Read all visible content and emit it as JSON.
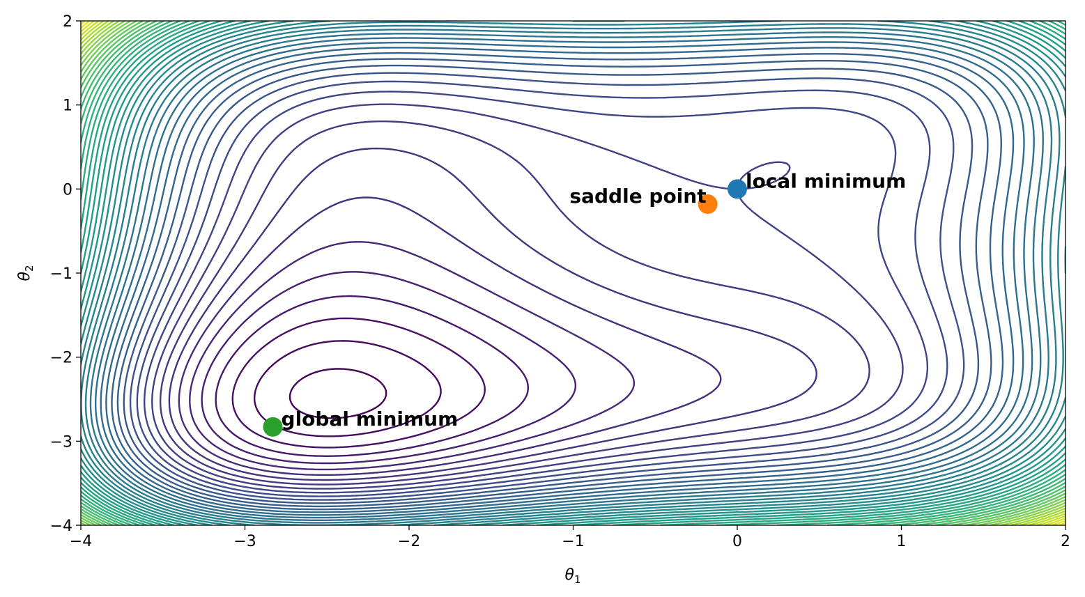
{
  "chart_data": {
    "type": "contour",
    "function": "theta1^4 + theta2^4 + 3*theta1^3 + 3*theta2^3 - 2*theta1*theta2",
    "xlabel": "θ",
    "xlabel_sub": "1",
    "ylabel": "θ",
    "ylabel_sub": "2",
    "xlim": [
      -4,
      2
    ],
    "ylim": [
      -4,
      2
    ],
    "xticks": [
      -4,
      -3,
      -2,
      -1,
      0,
      1,
      2
    ],
    "xtick_labels": [
      "−4",
      "−3",
      "−2",
      "−1",
      "0",
      "1",
      "2"
    ],
    "yticks": [
      -4,
      -3,
      -2,
      -1,
      0,
      1,
      2
    ],
    "ytick_labels": [
      "−4",
      "−3",
      "−2",
      "−1",
      "0",
      "1",
      "2"
    ],
    "colormap": "viridis",
    "grid": false,
    "points": [
      {
        "label": "local minimum",
        "x": 0.0,
        "y": 0.0,
        "color": "#1f77b4",
        "label_side": "right"
      },
      {
        "label": "saddle point",
        "x": -0.18,
        "y": -0.18,
        "color": "#ff7f0e",
        "label_side": "left"
      },
      {
        "label": "global minimum",
        "x": -2.83,
        "y": -2.83,
        "color": "#2ca02c",
        "label_side": "right"
      }
    ]
  }
}
